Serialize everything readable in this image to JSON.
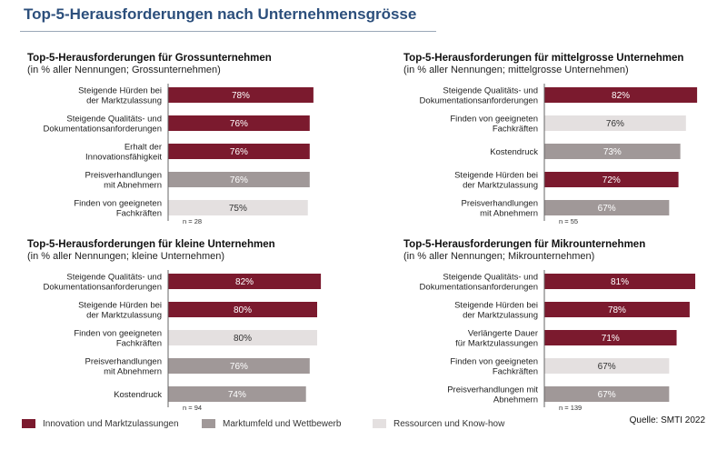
{
  "title": "Top-5-Herausforderungen nach Unternehmensgrösse",
  "colors": {
    "innovation": "#7b1a2e",
    "markt": "#a09898",
    "ressourcen": "#e4e0e0"
  },
  "legend": [
    {
      "label": "Innovation und Marktzulassungen",
      "category": "innovation"
    },
    {
      "label": "Marktumfeld und Wettbewerb",
      "category": "markt"
    },
    {
      "label": "Ressourcen und Know-how",
      "category": "ressourcen"
    }
  ],
  "source": "Quelle: SMTI 2022",
  "chart_data": [
    {
      "type": "bar",
      "orientation": "horizontal",
      "title": "Top-5-Herausforderungen für Grossunternehmen",
      "subtitle": "(in % aller Nennungen; Grossunternehmen)",
      "n_label": "n = 28",
      "bars": [
        {
          "label": "Steigende Hürden bei der Marktzulassung",
          "lines": [
            "Steigende Hürden bei",
            "der Marktzulassung"
          ],
          "value": 78,
          "value_label": "78%",
          "category": "innovation"
        },
        {
          "label": "Steigende Qualitäts- und Dokumentationsanforderungen",
          "lines": [
            "Steigende Qualitäts- und",
            "Dokumentationsanforderungen"
          ],
          "value": 76,
          "value_label": "76%",
          "category": "innovation"
        },
        {
          "label": "Erhalt der Innovationsfähigkeit",
          "lines": [
            "Erhalt der",
            "Innovationsfähigkeit"
          ],
          "value": 76,
          "value_label": "76%",
          "category": "innovation"
        },
        {
          "label": "Preisverhandlungen mit Abnehmern",
          "lines": [
            "Preisverhandlungen",
            "mit Abnehmern"
          ],
          "value": 76,
          "value_label": "76%",
          "category": "markt"
        },
        {
          "label": "Finden von geeigneten Fachkräften",
          "lines": [
            "Finden von geeigneten",
            "Fachkräften"
          ],
          "value": 75,
          "value_label": "75%",
          "category": "ressourcen"
        }
      ]
    },
    {
      "type": "bar",
      "orientation": "horizontal",
      "title": "Top-5-Herausforderungen für mittelgrosse Unternehmen",
      "subtitle": "(in % aller Nennungen; mittelgrosse Unternehmen)",
      "n_label": "n = 55",
      "bars": [
        {
          "label": "Steigende Qualitäts- und Dokumentationsanforderungen",
          "lines": [
            "Steigende Qualitäts- und",
            "Dokumentationsanforderungen"
          ],
          "value": 82,
          "value_label": "82%",
          "category": "innovation"
        },
        {
          "label": "Finden von geeigneten Fachkräften",
          "lines": [
            "Finden von geeigneten",
            "Fachkräften"
          ],
          "value": 76,
          "value_label": "76%",
          "category": "ressourcen"
        },
        {
          "label": "Kostendruck",
          "lines": [
            "Kostendruck"
          ],
          "value": 73,
          "value_label": "73%",
          "category": "markt"
        },
        {
          "label": "Steigende Hürden bei der Marktzulassung",
          "lines": [
            "Steigende Hürden bei",
            "der Marktzulassung"
          ],
          "value": 72,
          "value_label": "72%",
          "category": "innovation"
        },
        {
          "label": "Preisverhandlungen mit Abnehmern",
          "lines": [
            "Preisverhandlungen",
            "mit Abnehmern"
          ],
          "value": 67,
          "value_label": "67%",
          "category": "markt"
        }
      ]
    },
    {
      "type": "bar",
      "orientation": "horizontal",
      "title": "Top-5-Herausforderungen für kleine Unternehmen",
      "subtitle": "(in % aller Nennungen; kleine Unternehmen)",
      "n_label": "n = 94",
      "bars": [
        {
          "label": "Steigende Qualitäts- und Dokumentationsanforderungen",
          "lines": [
            "Steigende Qualitäts- und",
            "Dokumentationsanforderungen"
          ],
          "value": 82,
          "value_label": "82%",
          "category": "innovation"
        },
        {
          "label": "Steigende Hürden bei der Marktzulassung",
          "lines": [
            "Steigende Hürden bei",
            "der Marktzulassung"
          ],
          "value": 80,
          "value_label": "80%",
          "category": "innovation"
        },
        {
          "label": "Finden von geeigneten Fachkräften",
          "lines": [
            "Finden von geeigneten",
            "Fachkräften"
          ],
          "value": 80,
          "value_label": "80%",
          "category": "ressourcen"
        },
        {
          "label": "Preisverhandlungen mit Abnehmern",
          "lines": [
            "Preisverhandlungen",
            "mit Abnehmern"
          ],
          "value": 76,
          "value_label": "76%",
          "category": "markt"
        },
        {
          "label": "Kostendruck",
          "lines": [
            "Kostendruck"
          ],
          "value": 74,
          "value_label": "74%",
          "category": "markt"
        }
      ]
    },
    {
      "type": "bar",
      "orientation": "horizontal",
      "title": "Top-5-Herausforderungen für Mikrounternehmen",
      "subtitle": "(in % aller Nennungen; Mikrounternehmen)",
      "n_label": "n = 139",
      "bars": [
        {
          "label": "Steigende Qualitäts- und Dokumentationsanforderungen",
          "lines": [
            "Steigende Qualitäts- und",
            "Dokumentationsanforderungen"
          ],
          "value": 81,
          "value_label": "81%",
          "category": "innovation"
        },
        {
          "label": "Steigende Hürden bei der Marktzulassung",
          "lines": [
            "Steigende Hürden bei",
            "der Marktzulassung"
          ],
          "value": 78,
          "value_label": "78%",
          "category": "innovation"
        },
        {
          "label": "Verlängerte Dauer für Marktzulassungen",
          "lines": [
            "Verlängerte Dauer",
            "für Marktzulassungen"
          ],
          "value": 71,
          "value_label": "71%",
          "category": "innovation"
        },
        {
          "label": "Finden von geeigneten Fachkräften",
          "lines": [
            "Finden von geeigneten",
            "Fachkräften"
          ],
          "value": 67,
          "value_label": "67%",
          "category": "ressourcen"
        },
        {
          "label": "Preisverhandlungen mit Abnehmern",
          "lines": [
            "Preisverhandlungen mit",
            "Abnehmern"
          ],
          "value": 67,
          "value_label": "67%",
          "category": "markt"
        }
      ]
    }
  ]
}
